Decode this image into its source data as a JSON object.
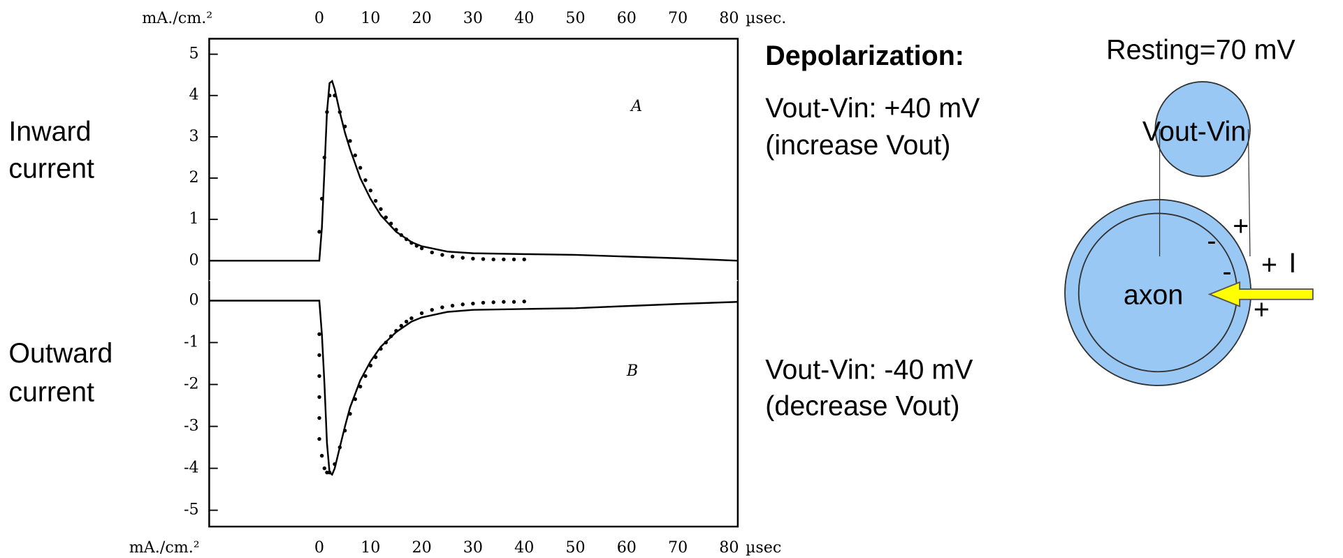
{
  "chart_data": {
    "type": "line",
    "y_unit_label_top": "mA./cm.²",
    "y_unit_label_bottom": "mA./cm.²",
    "x_unit_label_top": "µsec.",
    "x_unit_label_bottom": "µsec",
    "xlim": [
      -21.5,
      81.7
    ],
    "xticks": [
      0,
      10,
      20,
      30,
      40,
      50,
      60,
      70,
      80
    ],
    "panels": [
      {
        "label": "A",
        "side_label": [
          "Inward",
          "current"
        ],
        "ylim": [
          -0.48,
          5.375
        ],
        "yticks": [
          0,
          1,
          2,
          3,
          4,
          5
        ],
        "series": [
          {
            "style": "line",
            "color": "#000000",
            "x": [
              -21.5,
              0,
              0.5,
              1,
              1.5,
              2,
              2.5,
              3,
              4,
              5,
              6,
              8,
              10,
              12,
              15,
              18,
              20,
              25,
              30,
              40,
              50,
              60,
              70,
              81.7
            ],
            "values": [
              0,
              0,
              0.8,
              2.2,
              3.6,
              4.3,
              4.35,
              4.15,
              3.6,
              3.1,
              2.7,
              2.0,
              1.5,
              1.1,
              0.7,
              0.45,
              0.35,
              0.22,
              0.18,
              0.16,
              0.14,
              0.1,
              0.06,
              0
            ]
          },
          {
            "style": "dots",
            "color": "#000000",
            "x": [
              0,
              0.5,
              1,
              1.5,
              2,
              3,
              4,
              5,
              6,
              7,
              8,
              9,
              10,
              11,
              12,
              13,
              14,
              15,
              16,
              17,
              18,
              19,
              20,
              22,
              24,
              26,
              28,
              30,
              32,
              34,
              36,
              38,
              40
            ],
            "values": [
              0.7,
              1.5,
              2.5,
              3.6,
              4.0,
              4.0,
              3.6,
              3.25,
              2.9,
              2.55,
              2.25,
              1.95,
              1.7,
              1.45,
              1.25,
              1.05,
              0.9,
              0.75,
              0.62,
              0.52,
              0.43,
              0.36,
              0.3,
              0.2,
              0.14,
              0.1,
              0.07,
              0.05,
              0.04,
              0.03,
              0.03,
              0.03,
              0.03
            ]
          }
        ]
      },
      {
        "label": "B",
        "side_label": [
          "Outward",
          "current"
        ],
        "ylim": [
          -5.39,
          0.48
        ],
        "yticks": [
          0,
          -1,
          -2,
          -3,
          -4,
          -5
        ],
        "series": [
          {
            "style": "line",
            "color": "#000000",
            "x": [
              -21.5,
              0,
              0.5,
              1,
              1.5,
              2,
              2.5,
              3,
              4,
              5,
              6,
              8,
              10,
              12,
              15,
              18,
              20,
              25,
              30,
              40,
              50,
              60,
              70,
              81.7
            ],
            "values": [
              0,
              0,
              -0.8,
              -2.0,
              -3.4,
              -4.1,
              -4.15,
              -4.0,
              -3.5,
              -3.0,
              -2.55,
              -1.9,
              -1.45,
              -1.1,
              -0.75,
              -0.5,
              -0.4,
              -0.27,
              -0.22,
              -0.2,
              -0.18,
              -0.13,
              -0.08,
              -0.03
            ]
          },
          {
            "style": "dots",
            "color": "#000000",
            "x": [
              0,
              0,
              0,
              0,
              0,
              0,
              0.5,
              1,
              1.5,
              2,
              3,
              4,
              5,
              6,
              7,
              8,
              9,
              10,
              11,
              12,
              13,
              14,
              15,
              16,
              17,
              18,
              20,
              22,
              24,
              26,
              28,
              30,
              32,
              34,
              36,
              38,
              40
            ],
            "values": [
              -0.8,
              -1.3,
              -1.8,
              -2.3,
              -2.8,
              -3.3,
              -3.7,
              -4.0,
              -4.1,
              -4.1,
              -3.9,
              -3.5,
              -3.1,
              -2.7,
              -2.35,
              -2.05,
              -1.8,
              -1.55,
              -1.35,
              -1.15,
              -1.0,
              -0.85,
              -0.72,
              -0.6,
              -0.5,
              -0.42,
              -0.3,
              -0.22,
              -0.16,
              -0.12,
              -0.09,
              -0.07,
              -0.05,
              -0.04,
              -0.03,
              -0.03,
              -0.02
            ]
          }
        ]
      }
    ]
  },
  "notes": {
    "heading": "Depolarization:",
    "upper": [
      "Vout-Vin: +40 mV",
      "(increase Vout)"
    ],
    "lower": [
      "Vout-Vin: -40 mV",
      "(decrease Vout)"
    ]
  },
  "diagram": {
    "resting": "Resting=70 mV",
    "probe": "Vout-Vin",
    "axon": "axon",
    "signs": [
      "+",
      "-",
      "+",
      "-",
      "+"
    ],
    "current": "I"
  }
}
